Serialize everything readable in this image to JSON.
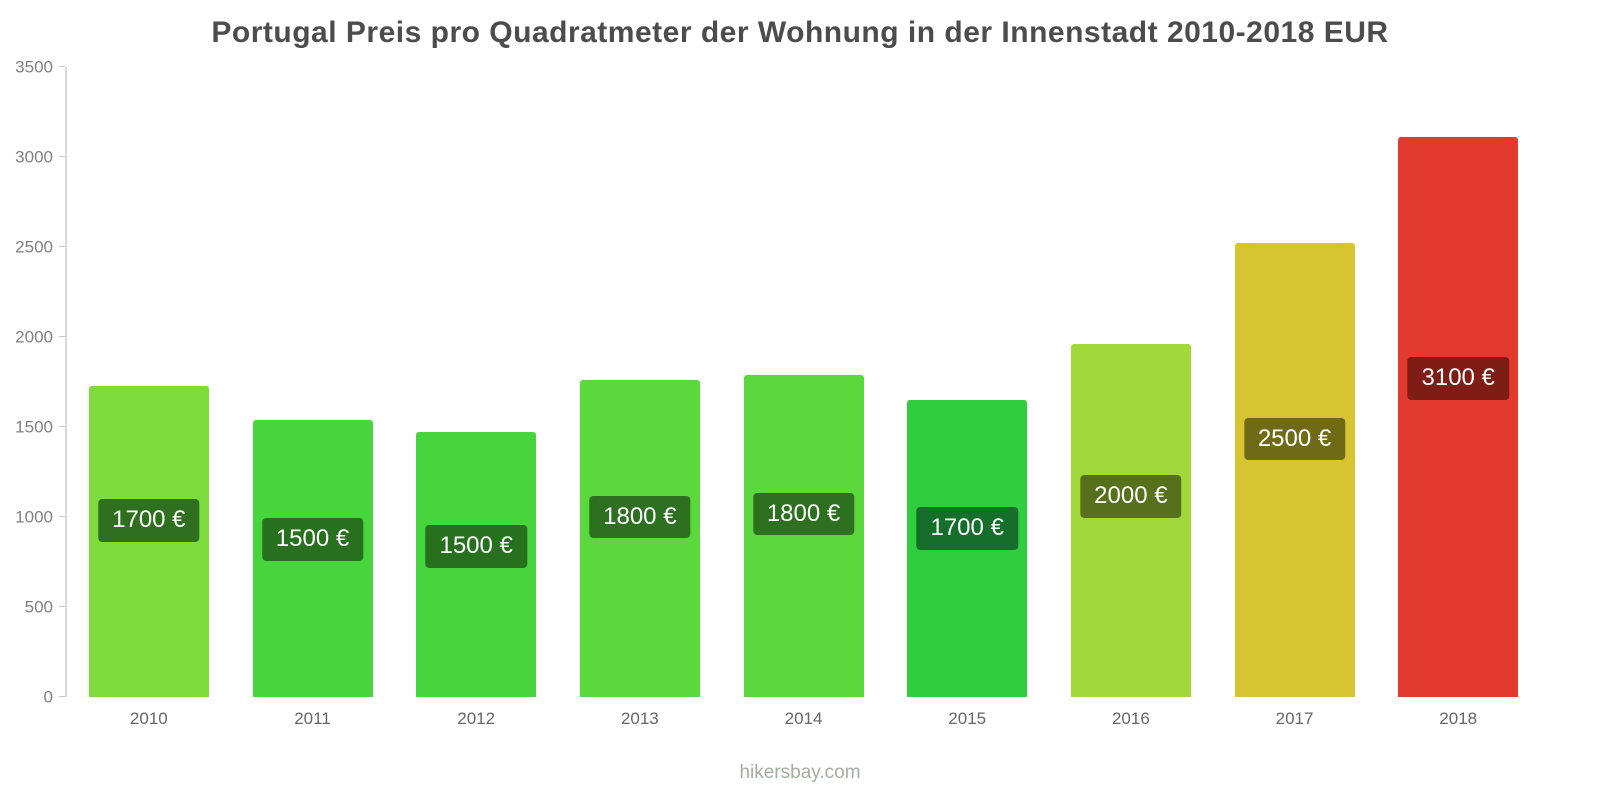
{
  "footer": "hikersbay.com",
  "chart_data": {
    "type": "bar",
    "title": "Portugal Preis pro Quadratmeter der Wohnung in der Innenstadt 2010-2018 EUR",
    "categories": [
      "2010",
      "2011",
      "2012",
      "2013",
      "2014",
      "2015",
      "2016",
      "2017",
      "2018"
    ],
    "values": [
      1730,
      1540,
      1470,
      1760,
      1790,
      1650,
      1960,
      2520,
      3110
    ],
    "labels": [
      "1700 €",
      "1500 €",
      "1500 €",
      "1800 €",
      "1800 €",
      "1700 €",
      "2000 €",
      "2500 €",
      "3100 €"
    ],
    "bar_colors": [
      "#7ddb3c",
      "#46d53c",
      "#46d53c",
      "#5bd93c",
      "#5bd93c",
      "#2fce3e",
      "#a2d93a",
      "#d6c430",
      "#e23a2e"
    ],
    "label_colors": [
      "#2e7020",
      "#27701d",
      "#27701d",
      "#2d7020",
      "#2d7020",
      "#156f2a",
      "#57701c",
      "#716a15",
      "#7e1d15"
    ],
    "xlabel": "",
    "ylabel": "",
    "ylim": [
      0,
      3500
    ],
    "yticks": [
      0,
      500,
      1000,
      1500,
      2000,
      2500,
      3000,
      3500
    ],
    "grid": false,
    "legend": false
  }
}
